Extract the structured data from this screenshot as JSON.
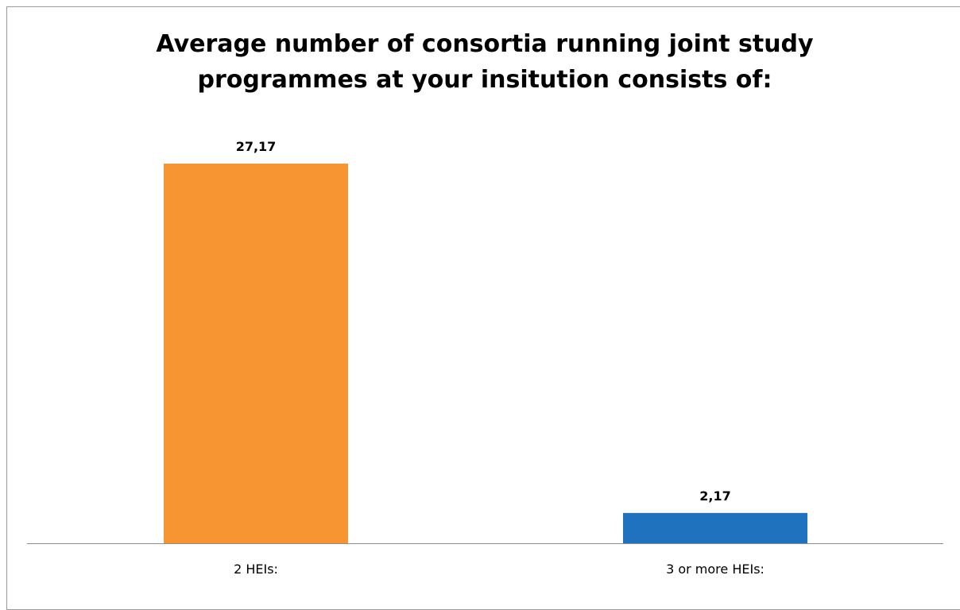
{
  "chart_data": {
    "type": "bar",
    "title": "Average number of consortia running joint study programmes at your insitution consists of:",
    "title_lines": [
      "Average number of consortia running joint study",
      "programmes at your insitution consists of:"
    ],
    "categories": [
      "2 HEIs:",
      "3 or more HEIs:"
    ],
    "values": [
      27.17,
      2.17
    ],
    "value_labels": [
      "27,17",
      "2,17"
    ],
    "bar_colors": [
      "#f79532",
      "#1f73be"
    ],
    "xlabel": "",
    "ylabel": "",
    "ylim": [
      0,
      27.17
    ],
    "grid": false,
    "legend": "none"
  }
}
